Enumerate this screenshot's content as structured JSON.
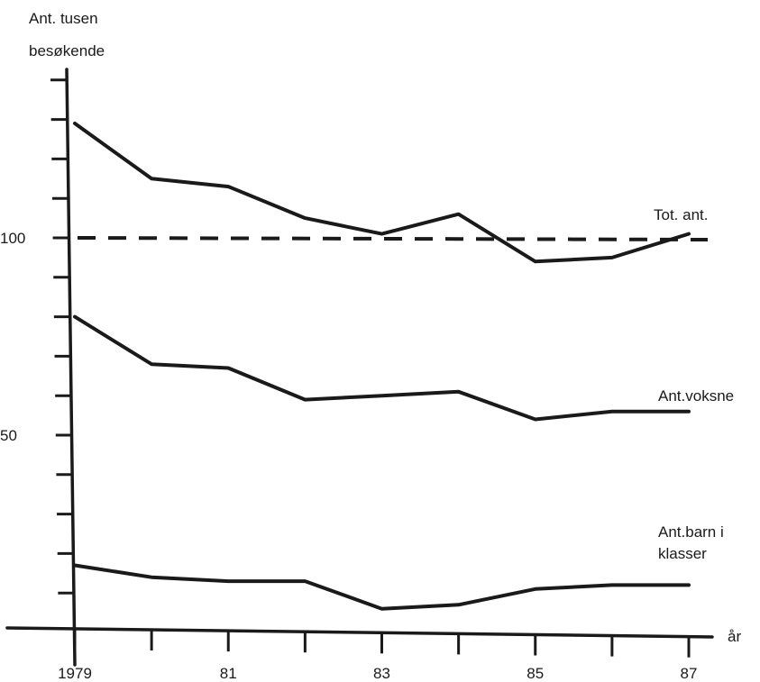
{
  "chart_data": {
    "type": "line",
    "ylabel_lines": [
      "Ant. tusen",
      "besøkende"
    ],
    "xlabel": "år",
    "x": [
      1979,
      1980,
      1981,
      1982,
      1983,
      1984,
      1985,
      1986,
      1987
    ],
    "x_tick_labels": [
      "1979",
      "81",
      "83",
      "85",
      "87"
    ],
    "x_tick_label_values": [
      1979,
      1981,
      1983,
      1985,
      1987
    ],
    "y_tick_labels": [
      "100",
      "50"
    ],
    "y_tick_label_values": [
      100,
      50
    ],
    "xlim": [
      1979,
      1987
    ],
    "ylim": [
      0,
      130
    ],
    "series": [
      {
        "name": "Tot. ant.",
        "values": [
          129,
          115,
          113,
          105,
          101,
          106,
          94,
          95,
          101
        ]
      },
      {
        "name": "Ant. voksne",
        "values": [
          80,
          68,
          67,
          59,
          60,
          61,
          54,
          56,
          56
        ]
      },
      {
        "name": "Ant. barn i klasser",
        "values": [
          17,
          14,
          13,
          13,
          6,
          7,
          11,
          12,
          12
        ]
      }
    ],
    "series_labels": [
      {
        "lines": [
          "Tot. ant."
        ]
      },
      {
        "lines": [
          "Ant.voksne"
        ]
      },
      {
        "lines": [
          "Ant.barn i",
          "klasser"
        ]
      }
    ],
    "reference_line": {
      "value": 100,
      "style": "dashed"
    },
    "grid": false
  }
}
